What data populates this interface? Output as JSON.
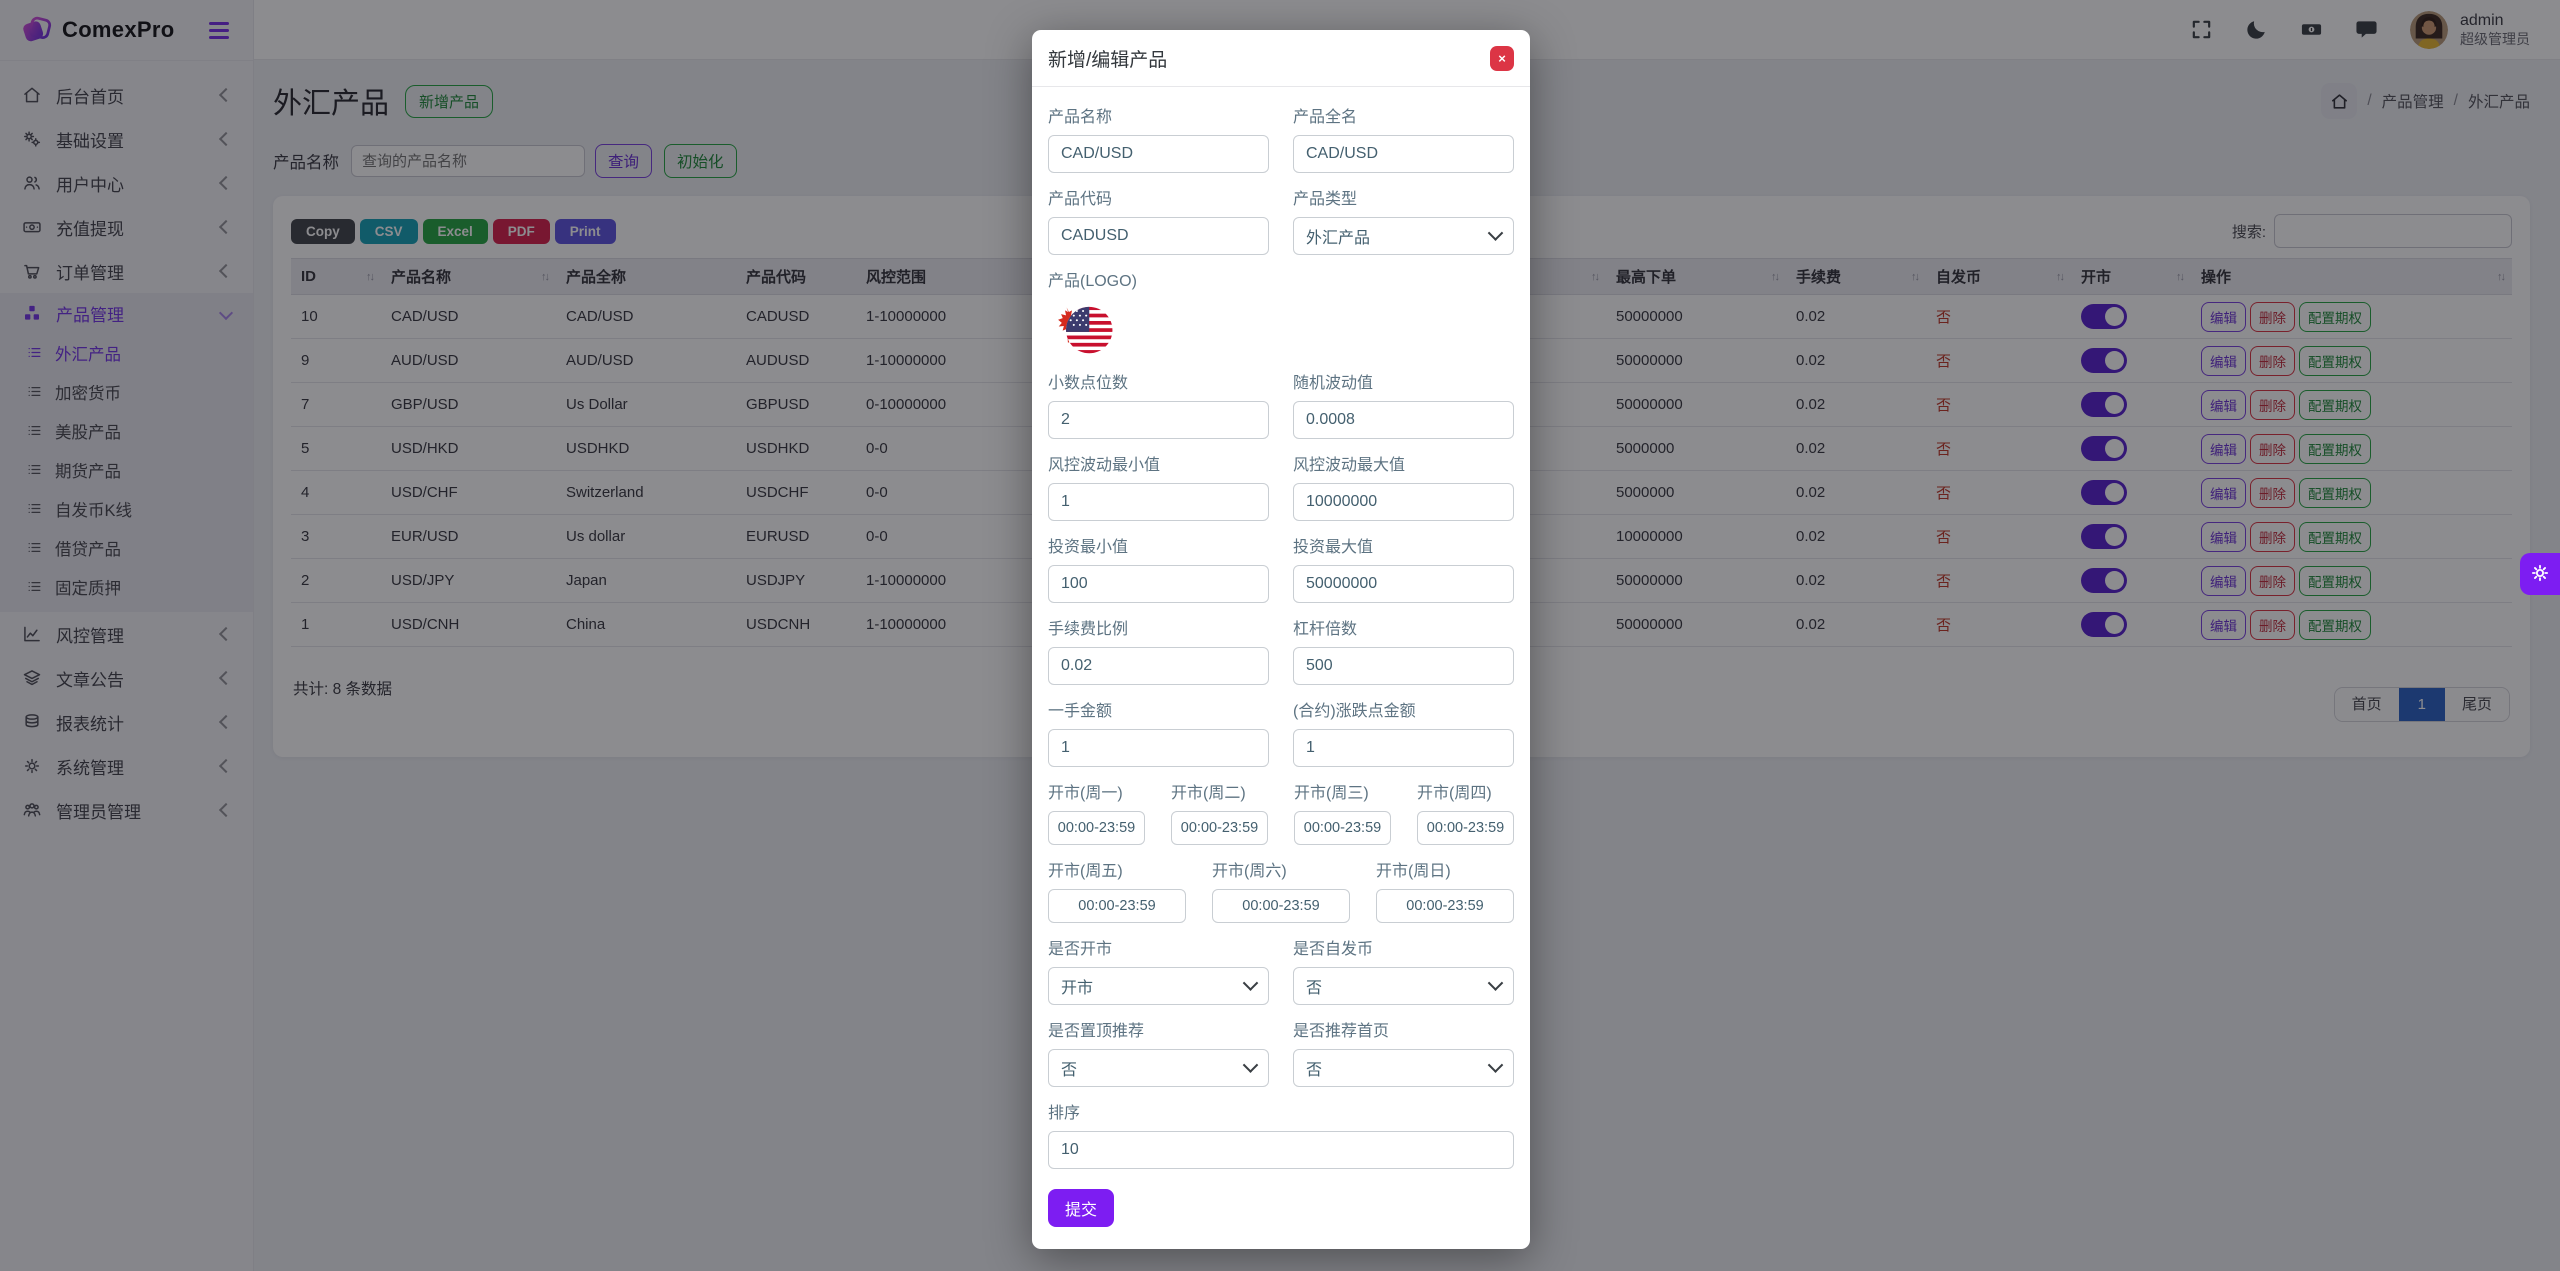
{
  "brand": {
    "name": "ComexPro"
  },
  "topbar": {
    "user_name": "admin",
    "user_role": "超级管理员"
  },
  "sidebar": {
    "items": [
      {
        "label": "后台首页",
        "icon": "home-icon"
      },
      {
        "label": "基础设置",
        "icon": "settings-icon"
      },
      {
        "label": "用户中心",
        "icon": "users-icon"
      },
      {
        "label": "充值提现",
        "icon": "money-icon"
      },
      {
        "label": "订单管理",
        "icon": "cart-icon"
      },
      {
        "label": "产品管理",
        "icon": "products-icon",
        "expanded": true,
        "active": true,
        "children": [
          "外汇产品",
          "加密货币",
          "美股产品",
          "期货产品",
          "自发币K线",
          "借贷产品",
          "固定质押"
        ],
        "active_child": "外汇产品"
      },
      {
        "label": "风控管理",
        "icon": "risk-icon"
      },
      {
        "label": "文章公告",
        "icon": "articles-icon"
      },
      {
        "label": "报表统计",
        "icon": "reports-icon"
      },
      {
        "label": "系统管理",
        "icon": "system-icon"
      },
      {
        "label": "管理员管理",
        "icon": "admins-icon"
      }
    ]
  },
  "page": {
    "title": "外汇产品",
    "title_badge": "新增产品",
    "breadcrumb": {
      "items": [
        "产品管理",
        "外汇产品"
      ],
      "separator": "/"
    },
    "filter": {
      "label": "产品名称",
      "placeholder": "查询的产品名称",
      "query_button": "查询",
      "init_button": "初始化"
    }
  },
  "table": {
    "export_buttons": [
      {
        "label": "Copy",
        "color": "#43474c"
      },
      {
        "label": "CSV",
        "color": "#17a2b8"
      },
      {
        "label": "Excel",
        "color": "#28a745"
      },
      {
        "label": "PDF",
        "color": "#d9234f"
      },
      {
        "label": "Print",
        "color": "#5f55e0"
      }
    ],
    "search_label": "搜索:",
    "headers": [
      {
        "label": "ID",
        "sortable": true
      },
      {
        "label": "产品名称",
        "sortable": true
      },
      {
        "label": "产品全称",
        "sortable": false
      },
      {
        "label": "产品代码",
        "sortable": false
      },
      {
        "label": "风控范围",
        "sortable": true
      },
      {
        "label": "",
        "sortable": true
      },
      {
        "label": "最高下单",
        "sortable": true
      },
      {
        "label": "手续费",
        "sortable": true
      },
      {
        "label": "自发币",
        "sortable": true
      },
      {
        "label": "开市",
        "sortable": true
      },
      {
        "label": "操作",
        "sortable": true
      }
    ],
    "rows": [
      {
        "id": "10",
        "name": "CAD/USD",
        "full": "CAD/USD",
        "code": "CADUSD",
        "risk": "1-10000000",
        "max": "50000000",
        "fee": "0.02",
        "self": "否",
        "open": true
      },
      {
        "id": "9",
        "name": "AUD/USD",
        "full": "AUD/USD",
        "code": "AUDUSD",
        "risk": "1-10000000",
        "max": "50000000",
        "fee": "0.02",
        "self": "否",
        "open": true
      },
      {
        "id": "7",
        "name": "GBP/USD",
        "full": "Us Dollar",
        "code": "GBPUSD",
        "risk": "0-10000000",
        "max": "50000000",
        "fee": "0.02",
        "self": "否",
        "open": true
      },
      {
        "id": "5",
        "name": "USD/HKD",
        "full": "USDHKD",
        "code": "USDHKD",
        "risk": "0-0",
        "max": "5000000",
        "fee": "0.02",
        "self": "否",
        "open": true
      },
      {
        "id": "4",
        "name": "USD/CHF",
        "full": "Switzerland",
        "code": "USDCHF",
        "risk": "0-0",
        "max": "5000000",
        "fee": "0.02",
        "self": "否",
        "open": true
      },
      {
        "id": "3",
        "name": "EUR/USD",
        "full": "Us dollar",
        "code": "EURUSD",
        "risk": "0-0",
        "max": "10000000",
        "fee": "0.02",
        "self": "否",
        "open": true
      },
      {
        "id": "2",
        "name": "USD/JPY",
        "full": "Japan",
        "code": "USDJPY",
        "risk": "1-10000000",
        "max": "50000000",
        "fee": "0.02",
        "self": "否",
        "open": true
      },
      {
        "id": "1",
        "name": "USD/CNH",
        "full": "China",
        "code": "USDCNH",
        "risk": "1-10000000",
        "max": "50000000",
        "fee": "0.02",
        "self": "否",
        "open": true
      }
    ],
    "row_actions": [
      "编辑",
      "删除",
      "配置期权"
    ],
    "total_text": "共计: 8 条数据",
    "pagination": {
      "first": "首页",
      "page": "1",
      "last": "尾页",
      "active_color": "#2c62c4"
    }
  },
  "modal": {
    "title": "新增/编辑产品",
    "close_label": "×",
    "fields": [
      {
        "label": "产品名称",
        "value": "CAD/USD",
        "type": "text"
      },
      {
        "label": "产品全名",
        "value": "CAD/USD",
        "type": "text"
      },
      {
        "label": "产品代码",
        "value": "CADUSD",
        "type": "text"
      },
      {
        "label": "产品类型",
        "value": "外汇产品",
        "type": "select"
      },
      {
        "label": "产品(LOGO)",
        "value": "cad-usd-flag",
        "type": "logo"
      },
      {
        "label": "小数点位数",
        "value": "2",
        "type": "text"
      },
      {
        "label": "随机波动值",
        "value": "0.0008",
        "type": "text"
      },
      {
        "label": "风控波动最小值",
        "value": "1",
        "type": "text"
      },
      {
        "label": "风控波动最大值",
        "value": "10000000",
        "type": "text"
      },
      {
        "label": "投资最小值",
        "value": "100",
        "type": "text"
      },
      {
        "label": "投资最大值",
        "value": "50000000",
        "type": "text"
      },
      {
        "label": "手续费比例",
        "value": "0.02",
        "type": "text"
      },
      {
        "label": "杠杆倍数",
        "value": "500",
        "type": "text"
      },
      {
        "label": "一手金额",
        "value": "1",
        "type": "text"
      },
      {
        "label": "(合约)涨跌点金额",
        "value": "1",
        "type": "text"
      }
    ],
    "weekdays": [
      {
        "label": "开市(周一)",
        "value": "00:00-23:59"
      },
      {
        "label": "开市(周二)",
        "value": "00:00-23:59"
      },
      {
        "label": "开市(周三)",
        "value": "00:00-23:59"
      },
      {
        "label": "开市(周四)",
        "value": "00:00-23:59"
      },
      {
        "label": "开市(周五)",
        "value": "00:00-23:59"
      },
      {
        "label": "开市(周六)",
        "value": "00:00-23:59"
      },
      {
        "label": "开市(周日)",
        "value": "00:00-23:59"
      }
    ],
    "selects": [
      {
        "label": "是否开市",
        "value": "开市"
      },
      {
        "label": "是否自发币",
        "value": "否"
      },
      {
        "label": "是否置顶推荐",
        "value": "否"
      },
      {
        "label": "是否推荐首页",
        "value": "否"
      }
    ],
    "sort_field": {
      "label": "排序",
      "value": "10"
    },
    "submit_label": "提交"
  },
  "colors": {
    "accent": "#7d1df2",
    "toggle_on": "#5a23d0",
    "danger": "#dc3545",
    "success": "#28a745",
    "info": "#17a2b8"
  }
}
